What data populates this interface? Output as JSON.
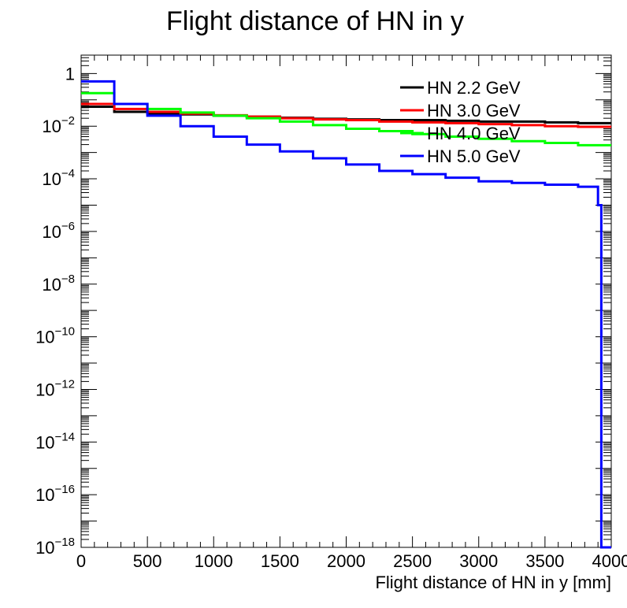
{
  "chart_data": {
    "type": "line",
    "title": "Flight distance of HN in y",
    "xlabel": "Flight distance of HN in y [mm]",
    "ylabel": "",
    "xlim": [
      0,
      4000
    ],
    "ylim": [
      1e-18,
      5
    ],
    "yscale": "log",
    "x_ticks": [
      0,
      500,
      1000,
      1500,
      2000,
      2500,
      3000,
      3500,
      4000
    ],
    "y_ticks": [
      {
        "exp": 0,
        "label": "1"
      },
      {
        "exp": -2,
        "label": "10",
        "sup": "−2"
      },
      {
        "exp": -4,
        "label": "10",
        "sup": "−4"
      },
      {
        "exp": -6,
        "label": "10",
        "sup": "−6"
      },
      {
        "exp": -8,
        "label": "10",
        "sup": "−8"
      },
      {
        "exp": -10,
        "label": "10",
        "sup": "−10"
      },
      {
        "exp": -12,
        "label": "10",
        "sup": "−12"
      },
      {
        "exp": -14,
        "label": "10",
        "sup": "−14"
      },
      {
        "exp": -16,
        "label": "10",
        "sup": "−16"
      },
      {
        "exp": -18,
        "label": "10",
        "sup": "−18"
      }
    ],
    "legend_position": "top-right",
    "series": [
      {
        "name": "HN 2.2 GeV",
        "color": "#000000",
        "points": [
          [
            0,
            0.055
          ],
          [
            250,
            0.035
          ],
          [
            500,
            0.03
          ],
          [
            750,
            0.028
          ],
          [
            1000,
            0.025
          ],
          [
            1250,
            0.023
          ],
          [
            1500,
            0.021
          ],
          [
            1750,
            0.019
          ],
          [
            2000,
            0.018
          ],
          [
            2250,
            0.017
          ],
          [
            2500,
            0.017
          ],
          [
            2750,
            0.016
          ],
          [
            3000,
            0.015
          ],
          [
            3250,
            0.015
          ],
          [
            3500,
            0.014
          ],
          [
            3750,
            0.013
          ],
          [
            4000,
            0.012
          ]
        ]
      },
      {
        "name": "HN 3.0 GeV",
        "color": "#ff0000",
        "points": [
          [
            0,
            0.07
          ],
          [
            250,
            0.045
          ],
          [
            500,
            0.035
          ],
          [
            750,
            0.03
          ],
          [
            1000,
            0.026
          ],
          [
            1250,
            0.023
          ],
          [
            1500,
            0.02
          ],
          [
            1750,
            0.018
          ],
          [
            2000,
            0.017
          ],
          [
            2250,
            0.015
          ],
          [
            2500,
            0.014
          ],
          [
            2750,
            0.013
          ],
          [
            3000,
            0.012
          ],
          [
            3250,
            0.011
          ],
          [
            3500,
            0.01
          ],
          [
            3750,
            0.0095
          ],
          [
            4000,
            0.009
          ]
        ]
      },
      {
        "name": "HN 4.0 GeV",
        "color": "#00ff00",
        "points": [
          [
            0,
            0.18
          ],
          [
            250,
            0.07
          ],
          [
            500,
            0.045
          ],
          [
            750,
            0.033
          ],
          [
            1000,
            0.025
          ],
          [
            1250,
            0.02
          ],
          [
            1500,
            0.015
          ],
          [
            1750,
            0.011
          ],
          [
            2000,
            0.008
          ],
          [
            2250,
            0.0065
          ],
          [
            2500,
            0.005
          ],
          [
            2750,
            0.004
          ],
          [
            3000,
            0.0033
          ],
          [
            3250,
            0.0027
          ],
          [
            3500,
            0.0023
          ],
          [
            3750,
            0.0019
          ],
          [
            4000,
            0.0015
          ]
        ]
      },
      {
        "name": "HN 5.0 GeV",
        "color": "#0000ff",
        "points": [
          [
            0,
            0.5
          ],
          [
            250,
            0.07
          ],
          [
            500,
            0.025
          ],
          [
            750,
            0.01
          ],
          [
            1000,
            0.004
          ],
          [
            1250,
            0.002
          ],
          [
            1500,
            0.0011
          ],
          [
            1750,
            0.0006
          ],
          [
            2000,
            0.00035
          ],
          [
            2250,
            0.0002
          ],
          [
            2500,
            0.00015
          ],
          [
            2750,
            0.00011
          ],
          [
            3000,
            8e-05
          ],
          [
            3250,
            7e-05
          ],
          [
            3500,
            6e-05
          ],
          [
            3750,
            5e-05
          ],
          [
            3900,
            1e-05
          ],
          [
            3925,
            1e-18
          ],
          [
            4000,
            1e-18
          ]
        ]
      }
    ]
  }
}
